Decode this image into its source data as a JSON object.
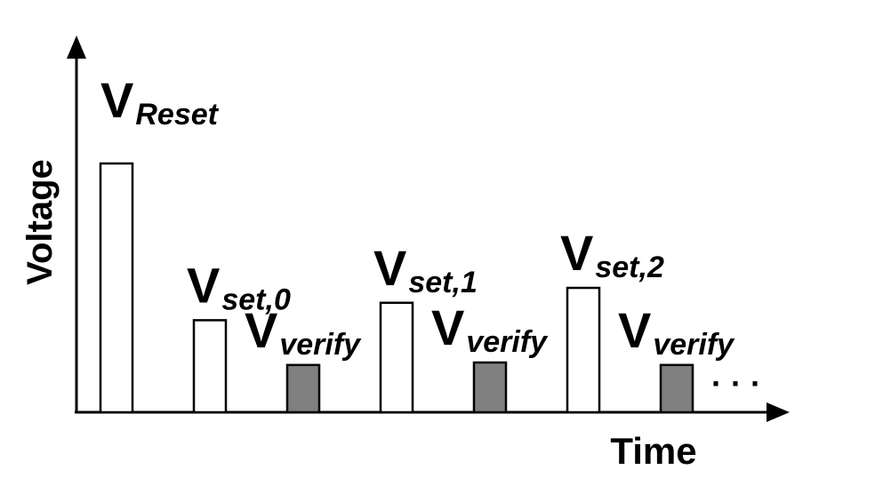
{
  "diagram": {
    "y_axis_label": "Voltage",
    "x_axis_label": "Time",
    "continuation": "· · ·",
    "colors": {
      "program_fill": "#ffffff",
      "verify_fill": "#808080",
      "stroke": "#000000"
    },
    "pulses": [
      {
        "id": "reset",
        "kind": "program",
        "main": "V",
        "sub": "Reset",
        "level": 1.0
      },
      {
        "id": "set0",
        "kind": "program",
        "main": "V",
        "sub": "set,0",
        "level": 0.37
      },
      {
        "id": "verify0",
        "kind": "verify",
        "main": "V",
        "sub": "verify",
        "level": 0.19
      },
      {
        "id": "set1",
        "kind": "program",
        "main": "V",
        "sub": "set,1",
        "level": 0.44
      },
      {
        "id": "verify1",
        "kind": "verify",
        "main": "V",
        "sub": "verify",
        "level": 0.2
      },
      {
        "id": "set2",
        "kind": "program",
        "main": "V",
        "sub": "set,2",
        "level": 0.5
      },
      {
        "id": "verify2",
        "kind": "verify",
        "main": "V",
        "sub": "verify",
        "level": 0.19
      }
    ]
  }
}
